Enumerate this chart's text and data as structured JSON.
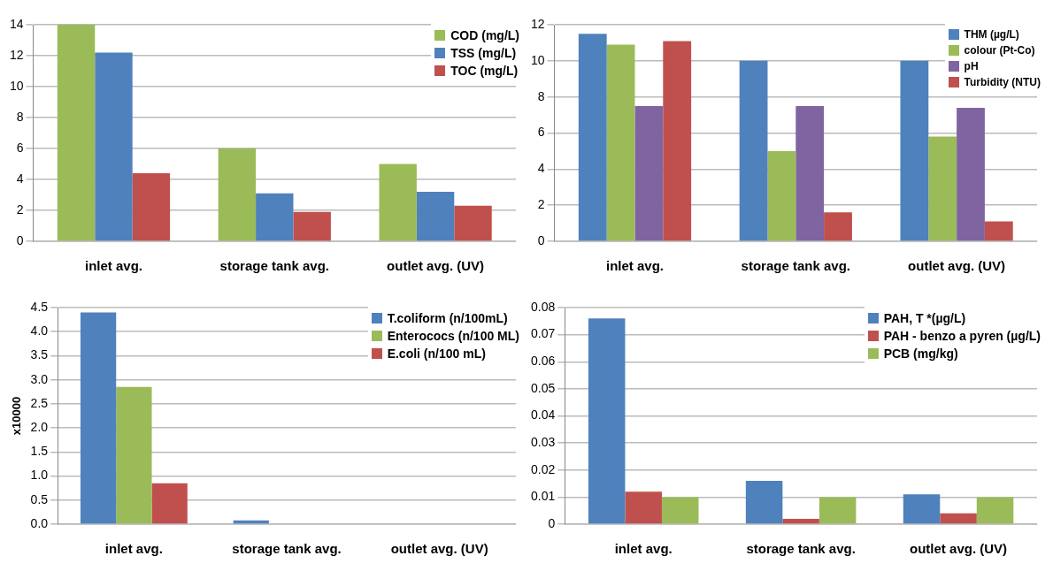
{
  "chart_data": [
    {
      "type": "bar",
      "categories": [
        "inlet avg.",
        "storage tank avg.",
        "outlet avg. (UV)"
      ],
      "series": [
        {
          "name": "COD (mg/L)",
          "color": "#9bbb59",
          "values": [
            14,
            6,
            5
          ]
        },
        {
          "name": "TSS (mg/L)",
          "color": "#4f81bd",
          "values": [
            12.2,
            3.1,
            3.2
          ]
        },
        {
          "name": "TOC (mg/L)",
          "color": "#c0504d",
          "values": [
            4.4,
            1.9,
            2.3
          ]
        }
      ],
      "ylim": [
        0,
        14
      ],
      "yticks": [
        0,
        2,
        4,
        6,
        8,
        10,
        12,
        14
      ],
      "grid": "y",
      "legend": "top right"
    },
    {
      "type": "bar",
      "categories": [
        "inlet avg.",
        "storage tank avg.",
        "outlet avg. (UV)"
      ],
      "series": [
        {
          "name": "THM (µg/L)",
          "color": "#4f81bd",
          "values": [
            11.5,
            10,
            10
          ]
        },
        {
          "name": "colour (Pt-Co)",
          "color": "#9bbb59",
          "values": [
            10.9,
            5,
            5.8
          ]
        },
        {
          "name": "pH",
          "color": "#8064a2",
          "values": [
            7.5,
            7.5,
            7.4
          ]
        },
        {
          "name": "Turbidity (NTU)",
          "color": "#c0504d",
          "values": [
            11.1,
            1.6,
            1.1
          ]
        }
      ],
      "ylim": [
        0,
        12
      ],
      "yticks": [
        0,
        2,
        4,
        6,
        8,
        10,
        12
      ],
      "grid": "y",
      "legend": "top right"
    },
    {
      "type": "bar",
      "categories": [
        "inlet avg.",
        "storage tank avg.",
        "outlet avg. (UV)"
      ],
      "ylabel": "x10000",
      "series": [
        {
          "name": "T.coliform (n/100mL)",
          "color": "#4f81bd",
          "values": [
            4.4,
            0.08,
            0
          ]
        },
        {
          "name": "Enterococs (n/100 ML)",
          "color": "#9bbb59",
          "values": [
            2.85,
            0,
            0
          ]
        },
        {
          "name": "E.coli (n/100 mL)",
          "color": "#c0504d",
          "values": [
            0.85,
            0,
            0
          ]
        }
      ],
      "ylim": [
        0,
        4.5
      ],
      "yticks": [
        {
          "value": 0,
          "label": "0.0"
        },
        {
          "value": 0.5,
          "label": "0.5"
        },
        {
          "value": 1,
          "label": "1.0"
        },
        {
          "value": 1.5,
          "label": "1.5"
        },
        {
          "value": 2,
          "label": "2.0"
        },
        {
          "value": 2.5,
          "label": "2.5"
        },
        {
          "value": 3,
          "label": "3.0"
        },
        {
          "value": 3.5,
          "label": "3.5"
        },
        {
          "value": 4,
          "label": "4.0"
        },
        {
          "value": 4.5,
          "label": "4.5"
        }
      ],
      "grid": "y",
      "legend": "top right"
    },
    {
      "type": "bar",
      "categories": [
        "inlet avg.",
        "storage tank avg.",
        "outlet avg. (UV)"
      ],
      "series": [
        {
          "name": "PAH, T *(µg/L)",
          "color": "#4f81bd",
          "values": [
            0.076,
            0.016,
            0.011
          ]
        },
        {
          "name": "PAH - benzo a pyren (µg/L)",
          "color": "#c0504d",
          "values": [
            0.012,
            0.002,
            0.004
          ]
        },
        {
          "name": "PCB (mg/kg)",
          "color": "#9bbb59",
          "values": [
            0.01,
            0.01,
            0.01
          ]
        }
      ],
      "ylim": [
        0,
        0.08
      ],
      "yticks": [
        0,
        0.01,
        0.02,
        0.03,
        0.04,
        0.05,
        0.06,
        0.07,
        0.08
      ],
      "grid": "y",
      "legend": "top right"
    }
  ]
}
